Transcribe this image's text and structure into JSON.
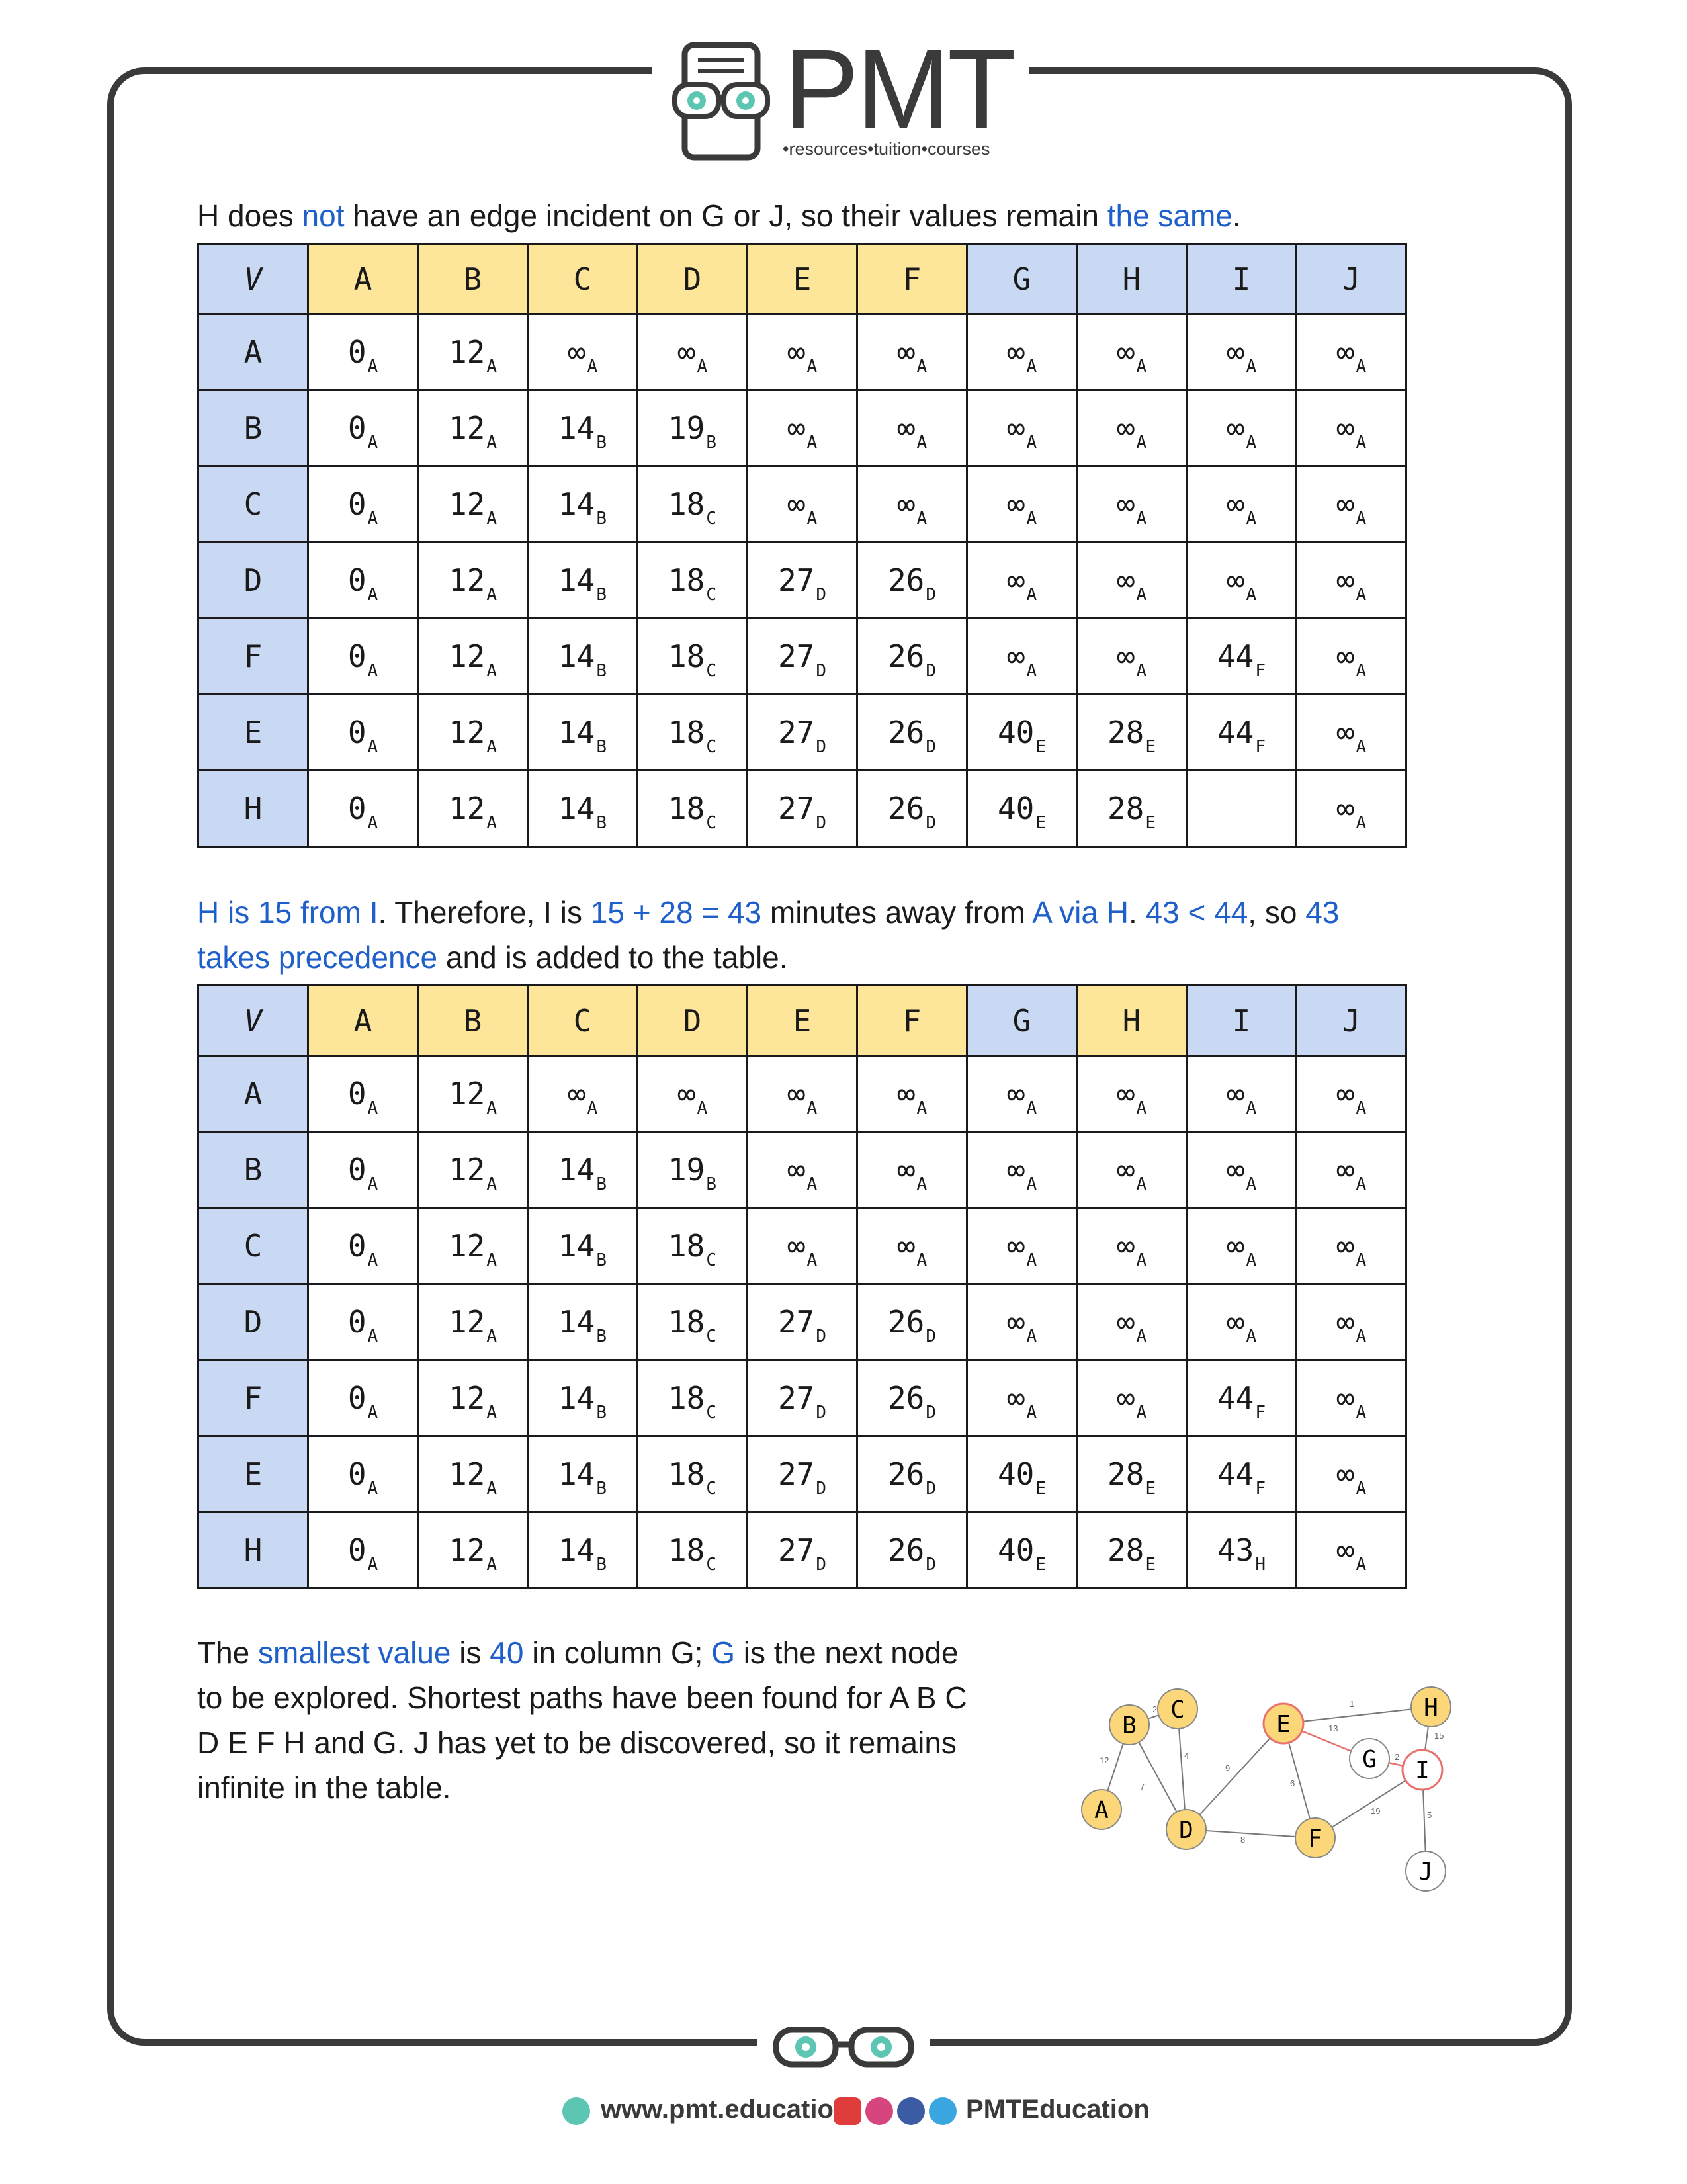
{
  "logo": {
    "title": "PMT",
    "subtitle": "•resources•tuition•courses"
  },
  "para1": {
    "t1": "H does ",
    "t2": "not",
    "t3": " have an edge incident on G or J, so their values remain ",
    "t4": "the same",
    "t5": "."
  },
  "table1": {
    "headers": [
      "V",
      "A",
      "B",
      "C",
      "D",
      "E",
      "F",
      "G",
      "H",
      "I",
      "J"
    ],
    "rows": [
      {
        "v": "A",
        "cells": [
          [
            "0",
            "A"
          ],
          [
            "12",
            "A"
          ],
          [
            "∞",
            "A"
          ],
          [
            "∞",
            "A"
          ],
          [
            "∞",
            "A"
          ],
          [
            "∞",
            "A"
          ],
          [
            "∞",
            "A"
          ],
          [
            "∞",
            "A"
          ],
          [
            "∞",
            "A"
          ],
          [
            "∞",
            "A"
          ]
        ]
      },
      {
        "v": "B",
        "cells": [
          [
            "0",
            "A"
          ],
          [
            "12",
            "A"
          ],
          [
            "14",
            "B"
          ],
          [
            "19",
            "B"
          ],
          [
            "∞",
            "A"
          ],
          [
            "∞",
            "A"
          ],
          [
            "∞",
            "A"
          ],
          [
            "∞",
            "A"
          ],
          [
            "∞",
            "A"
          ],
          [
            "∞",
            "A"
          ]
        ]
      },
      {
        "v": "C",
        "cells": [
          [
            "0",
            "A"
          ],
          [
            "12",
            "A"
          ],
          [
            "14",
            "B"
          ],
          [
            "18",
            "C"
          ],
          [
            "∞",
            "A"
          ],
          [
            "∞",
            "A"
          ],
          [
            "∞",
            "A"
          ],
          [
            "∞",
            "A"
          ],
          [
            "∞",
            "A"
          ],
          [
            "∞",
            "A"
          ]
        ]
      },
      {
        "v": "D",
        "cells": [
          [
            "0",
            "A"
          ],
          [
            "12",
            "A"
          ],
          [
            "14",
            "B"
          ],
          [
            "18",
            "C"
          ],
          [
            "27",
            "D"
          ],
          [
            "26",
            "D"
          ],
          [
            "∞",
            "A"
          ],
          [
            "∞",
            "A"
          ],
          [
            "∞",
            "A"
          ],
          [
            "∞",
            "A"
          ]
        ]
      },
      {
        "v": "F",
        "cells": [
          [
            "0",
            "A"
          ],
          [
            "12",
            "A"
          ],
          [
            "14",
            "B"
          ],
          [
            "18",
            "C"
          ],
          [
            "27",
            "D"
          ],
          [
            "26",
            "D"
          ],
          [
            "∞",
            "A"
          ],
          [
            "∞",
            "A"
          ],
          [
            "44",
            "F"
          ],
          [
            "∞",
            "A"
          ]
        ]
      },
      {
        "v": "E",
        "cells": [
          [
            "0",
            "A"
          ],
          [
            "12",
            "A"
          ],
          [
            "14",
            "B"
          ],
          [
            "18",
            "C"
          ],
          [
            "27",
            "D"
          ],
          [
            "26",
            "D"
          ],
          [
            "40",
            "E"
          ],
          [
            "28",
            "E"
          ],
          [
            "44",
            "F"
          ],
          [
            "∞",
            "A"
          ]
        ]
      },
      {
        "v": "H",
        "cells": [
          [
            "0",
            "A"
          ],
          [
            "12",
            "A"
          ],
          [
            "14",
            "B"
          ],
          [
            "18",
            "C"
          ],
          [
            "27",
            "D"
          ],
          [
            "26",
            "D"
          ],
          [
            "40",
            "E"
          ],
          [
            "28",
            "E"
          ],
          [
            "",
            ""
          ],
          [
            "∞",
            "A"
          ]
        ]
      }
    ]
  },
  "para2": {
    "t1": "H is 15 from I",
    "t2": ". Therefore, I is ",
    "t3": "15 + 28 = 43",
    "t4": " minutes away from ",
    "t5": "A via H",
    "t6": ". ",
    "t7": "43 < 44",
    "t8": ", so ",
    "t9": "43",
    "t10": "takes precedence",
    "t11": " and is added to the table."
  },
  "table2": {
    "headers": [
      "V",
      "A",
      "B",
      "C",
      "D",
      "E",
      "F",
      "G",
      "H",
      "I",
      "J"
    ],
    "rows": [
      {
        "v": "A",
        "cells": [
          [
            "0",
            "A"
          ],
          [
            "12",
            "A"
          ],
          [
            "∞",
            "A"
          ],
          [
            "∞",
            "A"
          ],
          [
            "∞",
            "A"
          ],
          [
            "∞",
            "A"
          ],
          [
            "∞",
            "A"
          ],
          [
            "∞",
            "A"
          ],
          [
            "∞",
            "A"
          ],
          [
            "∞",
            "A"
          ]
        ]
      },
      {
        "v": "B",
        "cells": [
          [
            "0",
            "A"
          ],
          [
            "12",
            "A"
          ],
          [
            "14",
            "B"
          ],
          [
            "19",
            "B"
          ],
          [
            "∞",
            "A"
          ],
          [
            "∞",
            "A"
          ],
          [
            "∞",
            "A"
          ],
          [
            "∞",
            "A"
          ],
          [
            "∞",
            "A"
          ],
          [
            "∞",
            "A"
          ]
        ]
      },
      {
        "v": "C",
        "cells": [
          [
            "0",
            "A"
          ],
          [
            "12",
            "A"
          ],
          [
            "14",
            "B"
          ],
          [
            "18",
            "C"
          ],
          [
            "∞",
            "A"
          ],
          [
            "∞",
            "A"
          ],
          [
            "∞",
            "A"
          ],
          [
            "∞",
            "A"
          ],
          [
            "∞",
            "A"
          ],
          [
            "∞",
            "A"
          ]
        ]
      },
      {
        "v": "D",
        "cells": [
          [
            "0",
            "A"
          ],
          [
            "12",
            "A"
          ],
          [
            "14",
            "B"
          ],
          [
            "18",
            "C"
          ],
          [
            "27",
            "D"
          ],
          [
            "26",
            "D"
          ],
          [
            "∞",
            "A"
          ],
          [
            "∞",
            "A"
          ],
          [
            "∞",
            "A"
          ],
          [
            "∞",
            "A"
          ]
        ]
      },
      {
        "v": "F",
        "cells": [
          [
            "0",
            "A"
          ],
          [
            "12",
            "A"
          ],
          [
            "14",
            "B"
          ],
          [
            "18",
            "C"
          ],
          [
            "27",
            "D"
          ],
          [
            "26",
            "D"
          ],
          [
            "∞",
            "A"
          ],
          [
            "∞",
            "A"
          ],
          [
            "44",
            "F"
          ],
          [
            "∞",
            "A"
          ]
        ]
      },
      {
        "v": "E",
        "cells": [
          [
            "0",
            "A"
          ],
          [
            "12",
            "A"
          ],
          [
            "14",
            "B"
          ],
          [
            "18",
            "C"
          ],
          [
            "27",
            "D"
          ],
          [
            "26",
            "D"
          ],
          [
            "40",
            "E"
          ],
          [
            "28",
            "E"
          ],
          [
            "44",
            "F"
          ],
          [
            "∞",
            "A"
          ]
        ]
      },
      {
        "v": "H",
        "cells": [
          [
            "0",
            "A"
          ],
          [
            "12",
            "A"
          ],
          [
            "14",
            "B"
          ],
          [
            "18",
            "C"
          ],
          [
            "27",
            "D"
          ],
          [
            "26",
            "D"
          ],
          [
            "40",
            "E"
          ],
          [
            "28",
            "E"
          ],
          [
            "43",
            "H"
          ],
          [
            "∞",
            "A"
          ]
        ]
      }
    ]
  },
  "para3": {
    "t1": "The ",
    "t2": "smallest value",
    "t3": " is ",
    "t4": "40",
    "t5": " in column G; ",
    "t6": "G",
    "t7": " is the next node",
    "line2": "to be explored. Shortest paths have been found for A B C",
    "line3": "D E F H and G. J has yet to be discovered, so it remains",
    "line4": "infinite in the table."
  },
  "graph": {
    "nodes": [
      "A",
      "B",
      "C",
      "D",
      "E",
      "F",
      "G",
      "H",
      "I",
      "J"
    ],
    "edge_weights": [
      "12",
      "2",
      "7",
      "4",
      "9",
      "1",
      "13",
      "6",
      "2",
      "15",
      "19",
      "5",
      "8"
    ]
  },
  "footer": {
    "website": "www.pmt.education",
    "social": "PMTEducation"
  },
  "colors": {
    "accent_blue": "#1f5fc9",
    "header_yellow": "#fde59a",
    "header_blue": "#c9d9f4",
    "node_yellow": "#fcd779",
    "edge_red": "#e8716c"
  }
}
